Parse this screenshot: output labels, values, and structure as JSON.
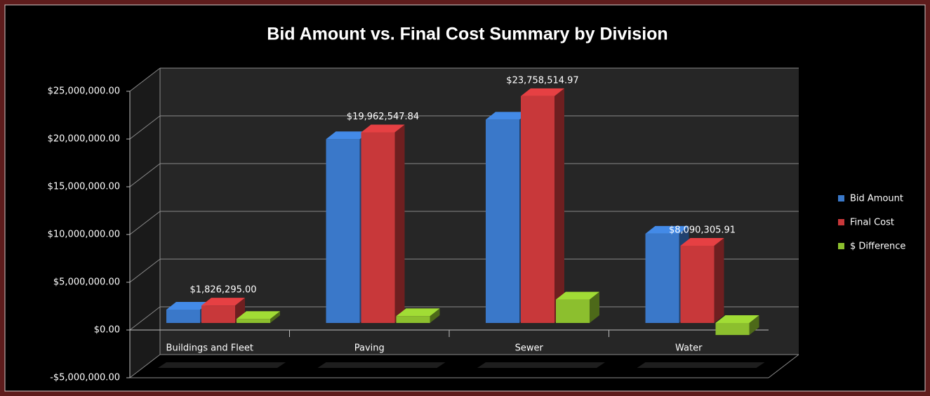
{
  "chart_data": {
    "type": "bar3d",
    "title": "Bid Amount vs. Final Cost Summary by Division",
    "categories": [
      "Buildings and Fleet",
      "Paving",
      "Sewer",
      "Water"
    ],
    "series": [
      {
        "name": "Bid Amount",
        "color": "#3a78c9",
        "values": [
          1400000,
          19250000,
          21300000,
          9350000
        ]
      },
      {
        "name": "Final Cost",
        "color": "#c8383a",
        "values": [
          1826295.0,
          19962547.84,
          23758514.97,
          8090305.91
        ],
        "value_labels": [
          "$1,826,295.00",
          "$19,962,547.84",
          "$23,758,514.97",
          "$8,090,305.91"
        ]
      },
      {
        "name": "$ Difference",
        "color": "#8cbf2e",
        "values": [
          426295,
          712548,
          2458515,
          -1259694
        ]
      }
    ],
    "ylim": [
      -5000000,
      25000000
    ],
    "yticks": [
      {
        "value": -5000000,
        "label": "-$5,000,000.00"
      },
      {
        "value": 0,
        "label": "$0.00"
      },
      {
        "value": 5000000,
        "label": "$5,000,000.00"
      },
      {
        "value": 10000000,
        "label": "$10,000,000.00"
      },
      {
        "value": 15000000,
        "label": "$15,000,000.00"
      },
      {
        "value": 20000000,
        "label": "$20,000,000.00"
      },
      {
        "value": 25000000,
        "label": "$25,000,000.00"
      }
    ],
    "grid": true,
    "legend": "right"
  }
}
